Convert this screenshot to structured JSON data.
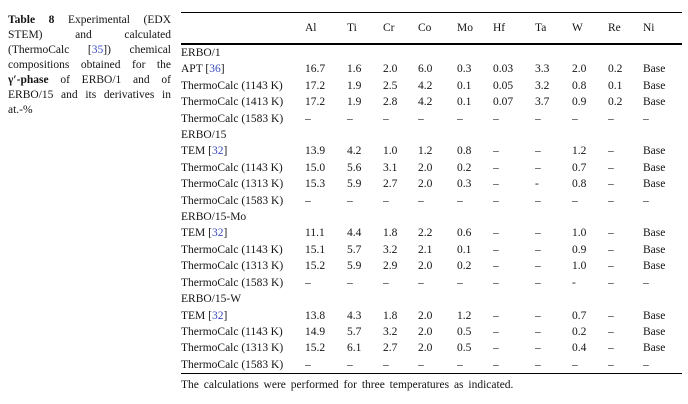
{
  "caption": {
    "label": "Table 8",
    "line1_rest": "Experimental (EDX",
    "line2": "STEM) and calculated",
    "line3_pre": "(ThermoCalc [",
    "ref": "35",
    "line3_post": "]) chemical",
    "line4": "compositions obtained for the",
    "line5_bold": "γ′-phase",
    "line5_rest": "of ERBO/1 and of",
    "line6": "ERBO/15 and its derivatives in",
    "line7": "at.-%"
  },
  "table": {
    "columns": [
      "Al",
      "Ti",
      "Cr",
      "Co",
      "Mo",
      "Hf",
      "Ta",
      "W",
      "Re",
      "Ni"
    ],
    "groups": [
      {
        "name": "ERBO/1",
        "rows": [
          {
            "label_prefix": "APT [",
            "ref": "36",
            "label_suffix": "]",
            "values": [
              "16.7",
              "1.6",
              "2.0",
              "6.0",
              "0.3",
              "0.03",
              "3.3",
              "2.0",
              "0.2",
              "Base"
            ]
          },
          {
            "label": "ThermoCalc (1143 K)",
            "values": [
              "17.2",
              "1.9",
              "2.5",
              "4.2",
              "0.1",
              "0.05",
              "3.2",
              "0.8",
              "0.1",
              "Base"
            ]
          },
          {
            "label": "ThermoCalc (1413 K)",
            "values": [
              "17.2",
              "1.9",
              "2.8",
              "4.2",
              "0.1",
              "0.07",
              "3.7",
              "0.9",
              "0.2",
              "Base"
            ]
          },
          {
            "label": "ThermoCalc (1583 K)",
            "values": [
              "–",
              "–",
              "–",
              "–",
              "–",
              "–",
              "–",
              "–",
              "–",
              "–"
            ]
          }
        ]
      },
      {
        "name": "ERBO/15",
        "rows": [
          {
            "label_prefix": "TEM [",
            "ref": "32",
            "label_suffix": "]",
            "values": [
              "13.9",
              "4.2",
              "1.0",
              "1.2",
              "0.8",
              "–",
              "–",
              "1.2",
              "–",
              "Base"
            ]
          },
          {
            "label": "ThermoCalc (1143 K)",
            "values": [
              "15.0",
              "5.6",
              "3.1",
              "2.0",
              "0.2",
              "–",
              "–",
              "0.7",
              "–",
              "Base"
            ]
          },
          {
            "label": "ThermoCalc (1313 K)",
            "values": [
              "15.3",
              "5.9",
              "2.7",
              "2.0",
              "0.3",
              "–",
              "-",
              "0.8",
              "–",
              "Base"
            ]
          },
          {
            "label": "ThermoCalc (1583 K)",
            "values": [
              "–",
              "–",
              "–",
              "–",
              "–",
              "–",
              "–",
              "–",
              "–",
              "–"
            ]
          }
        ]
      },
      {
        "name": "ERBO/15-Mo",
        "rows": [
          {
            "label_prefix": "TEM [",
            "ref": "32",
            "label_suffix": "]",
            "values": [
              "11.1",
              "4.4",
              "1.8",
              "2.2",
              "0.6",
              "–",
              "–",
              "1.0",
              "–",
              "Base"
            ]
          },
          {
            "label": "ThermoCalc (1143 K)",
            "values": [
              "15.1",
              "5.7",
              "3.2",
              "2.1",
              "0.1",
              "–",
              "–",
              "0.9",
              "–",
              "Base"
            ]
          },
          {
            "label": "ThermoCalc (1313 K)",
            "values": [
              "15.2",
              "5.9",
              "2.9",
              "2.0",
              "0.2",
              "–",
              "–",
              "1.0",
              "–",
              "Base"
            ]
          },
          {
            "label": "ThermoCalc (1583 K)",
            "values": [
              "–",
              "–",
              "–",
              "–",
              "–",
              "–",
              "–",
              "-",
              "–",
              "–"
            ]
          }
        ]
      },
      {
        "name": "ERBO/15-W",
        "rows": [
          {
            "label_prefix": "TEM [",
            "ref": "32",
            "label_suffix": "]",
            "values": [
              "13.8",
              "4.3",
              "1.8",
              "2.0",
              "1.2",
              "–",
              "–",
              "0.7",
              "–",
              "Base"
            ]
          },
          {
            "label": "ThermoCalc (1143 K)",
            "values": [
              "14.9",
              "5.7",
              "3.2",
              "2.0",
              "0.5",
              "–",
              "–",
              "0.2",
              "–",
              "Base"
            ]
          },
          {
            "label": "ThermoCalc (1313 K)",
            "values": [
              "15.2",
              "6.1",
              "2.7",
              "2.0",
              "0.5",
              "–",
              "–",
              "0.4",
              "–",
              "Base"
            ]
          },
          {
            "label": "ThermoCalc (1583 K)",
            "values": [
              "–",
              "–",
              "–",
              "–",
              "–",
              "–",
              "–",
              "–",
              "–",
              "–"
            ]
          }
        ]
      }
    ],
    "footnote": "The calculations were performed for three temperatures as indicated."
  },
  "colors": {
    "link_blue": "#3b4bc2",
    "text": "#141414",
    "rule": "#000000"
  }
}
